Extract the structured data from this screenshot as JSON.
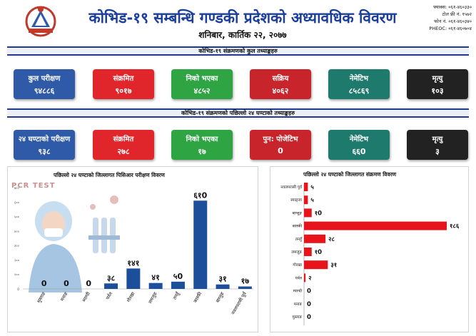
{
  "header": {
    "title": "कोभिड-१९ सम्बन्धि गण्डकी प्रदेशको अध्यावधिक विवरण",
    "date": "शनिबार, कार्तिक २२, २०७७",
    "contact": [
      "फ्याक्स: ०६१-४६०३३०",
      "टोल फ्री नं. १५७२",
      "फोन नं. ०६१-४६०३४०",
      "PHEOC: ०६१-४६०७०४"
    ]
  },
  "colors": {
    "blue": "#2e5aa8",
    "red": "#e0262b",
    "green": "#2ea443",
    "crimson": "#c8242b",
    "teal": "#1f7a6e",
    "dark": "#222222"
  },
  "total_section": {
    "heading": "कोभिड-१९ संक्रमणको कुल तथ्याङ्कहरु",
    "cards": [
      {
        "label": "कुल परीक्षण",
        "value": "९४८८६",
        "color": "#2e5aa8"
      },
      {
        "label": "संक्रमित",
        "value": "९०१७",
        "color": "#e0262b"
      },
      {
        "label": "निको भएका",
        "value": "४८५२",
        "color": "#2ea443"
      },
      {
        "label": "सक्रिय",
        "value": "४०६२",
        "color": "#c8242b"
      },
      {
        "label": "नेमेटिभ",
        "value": "८५८६९",
        "color": "#1f7a6e"
      },
      {
        "label": "मृत्यु",
        "value": "१०३",
        "color": "#222222"
      }
    ]
  },
  "daily_section": {
    "heading": "कोभिड-१९ संक्रमणको पछिल्लो २४ घण्टाको तथ्याङ्कहरु",
    "cards": [
      {
        "label": "२४ घण्टाको परीक्षण",
        "value": "९३८",
        "color": "#2e5aa8"
      },
      {
        "label": "संक्रमित",
        "value": "२७८",
        "color": "#e0262b"
      },
      {
        "label": "निको भएका",
        "value": "१७",
        "color": "#2ea443"
      },
      {
        "label": "पुन: पोजेटिभ",
        "value": "0",
        "color": "#c8242b"
      },
      {
        "label": "नेमेटिभ",
        "value": "६६0",
        "color": "#1f7a6e"
      },
      {
        "label": "मृत्यु",
        "value": "३",
        "color": "#222222"
      }
    ]
  },
  "pcr_label": "PCR TEST",
  "chart_data": [
    {
      "type": "bar",
      "title": "पछिल्लो २४ घण्टाको जिल्लागत पिसिआर परीक्षण विवरण",
      "categories": [
        "मुस्ताङ",
        "मनाङ",
        "म्याग्दी",
        "पर्वत",
        "गोरखा",
        "लमजुङ",
        "तनहुँ",
        "कास्की",
        "बाग्लुङ",
        "नवलपरासी पूर्व"
      ],
      "values": [
        0,
        0,
        0,
        38,
        141,
        41,
        50,
        610,
        31,
        17
      ],
      "value_labels": [
        "0",
        "0",
        "0",
        "३८",
        "१४१",
        "४१",
        "५0",
        "६१0",
        "३१",
        "१७"
      ],
      "yticks": [
        "0",
        "१००",
        "२००",
        "३००",
        "४००",
        "५००",
        "६००",
        "७००"
      ],
      "ylim": [
        0,
        700
      ],
      "bar_color": "#1b4f9c"
    },
    {
      "type": "bar",
      "orientation": "horizontal",
      "title": "पछिल्लो २४ घण्टाको जिल्लागत संक्रमण विवरण",
      "categories": [
        "नवलपरासी पूर्व",
        "स्याङ्जा",
        "बाग्लुङ",
        "कास्की",
        "तनहुँ",
        "लमजुङ",
        "गोरखा",
        "पर्वत",
        "म्याग्दी",
        "मनाङ",
        "मुस्ताङ"
      ],
      "values": [
        5,
        5,
        10,
        186,
        28,
        10,
        31,
        2,
        0,
        0,
        0
      ],
      "value_labels": [
        "५",
        "५",
        "१0",
        "१८६",
        "२८",
        "१0",
        "३१",
        "२",
        "0",
        "0",
        "0"
      ],
      "xlim": [
        0,
        186
      ],
      "bar_color": "#e8141b"
    }
  ]
}
